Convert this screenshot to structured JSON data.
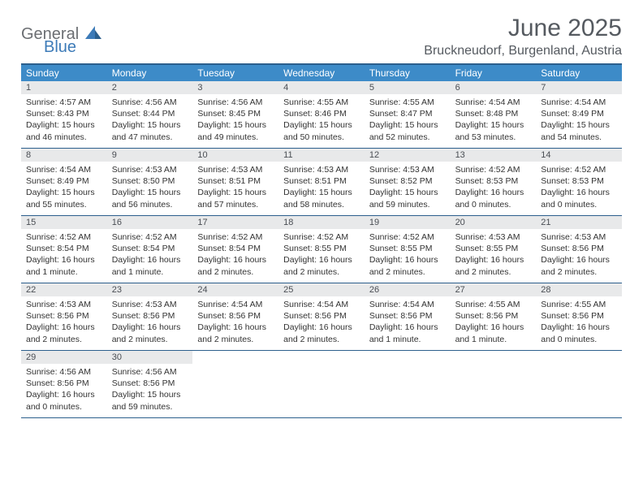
{
  "logo": {
    "text1": "General",
    "text2": "Blue"
  },
  "title": "June 2025",
  "location": "Bruckneudorf, Burgenland, Austria",
  "colors": {
    "header_bar": "#3d8bc8",
    "border": "#2c5f8d",
    "daynum_bg": "#e8e9ea",
    "text_gray": "#555a60",
    "logo_gray": "#6b6e72",
    "logo_blue": "#3d7bb8"
  },
  "dow": [
    "Sunday",
    "Monday",
    "Tuesday",
    "Wednesday",
    "Thursday",
    "Friday",
    "Saturday"
  ],
  "weeks": [
    [
      {
        "n": "1",
        "sr": "Sunrise: 4:57 AM",
        "ss": "Sunset: 8:43 PM",
        "d1": "Daylight: 15 hours",
        "d2": "and 46 minutes."
      },
      {
        "n": "2",
        "sr": "Sunrise: 4:56 AM",
        "ss": "Sunset: 8:44 PM",
        "d1": "Daylight: 15 hours",
        "d2": "and 47 minutes."
      },
      {
        "n": "3",
        "sr": "Sunrise: 4:56 AM",
        "ss": "Sunset: 8:45 PM",
        "d1": "Daylight: 15 hours",
        "d2": "and 49 minutes."
      },
      {
        "n": "4",
        "sr": "Sunrise: 4:55 AM",
        "ss": "Sunset: 8:46 PM",
        "d1": "Daylight: 15 hours",
        "d2": "and 50 minutes."
      },
      {
        "n": "5",
        "sr": "Sunrise: 4:55 AM",
        "ss": "Sunset: 8:47 PM",
        "d1": "Daylight: 15 hours",
        "d2": "and 52 minutes."
      },
      {
        "n": "6",
        "sr": "Sunrise: 4:54 AM",
        "ss": "Sunset: 8:48 PM",
        "d1": "Daylight: 15 hours",
        "d2": "and 53 minutes."
      },
      {
        "n": "7",
        "sr": "Sunrise: 4:54 AM",
        "ss": "Sunset: 8:49 PM",
        "d1": "Daylight: 15 hours",
        "d2": "and 54 minutes."
      }
    ],
    [
      {
        "n": "8",
        "sr": "Sunrise: 4:54 AM",
        "ss": "Sunset: 8:49 PM",
        "d1": "Daylight: 15 hours",
        "d2": "and 55 minutes."
      },
      {
        "n": "9",
        "sr": "Sunrise: 4:53 AM",
        "ss": "Sunset: 8:50 PM",
        "d1": "Daylight: 15 hours",
        "d2": "and 56 minutes."
      },
      {
        "n": "10",
        "sr": "Sunrise: 4:53 AM",
        "ss": "Sunset: 8:51 PM",
        "d1": "Daylight: 15 hours",
        "d2": "and 57 minutes."
      },
      {
        "n": "11",
        "sr": "Sunrise: 4:53 AM",
        "ss": "Sunset: 8:51 PM",
        "d1": "Daylight: 15 hours",
        "d2": "and 58 minutes."
      },
      {
        "n": "12",
        "sr": "Sunrise: 4:53 AM",
        "ss": "Sunset: 8:52 PM",
        "d1": "Daylight: 15 hours",
        "d2": "and 59 minutes."
      },
      {
        "n": "13",
        "sr": "Sunrise: 4:52 AM",
        "ss": "Sunset: 8:53 PM",
        "d1": "Daylight: 16 hours",
        "d2": "and 0 minutes."
      },
      {
        "n": "14",
        "sr": "Sunrise: 4:52 AM",
        "ss": "Sunset: 8:53 PM",
        "d1": "Daylight: 16 hours",
        "d2": "and 0 minutes."
      }
    ],
    [
      {
        "n": "15",
        "sr": "Sunrise: 4:52 AM",
        "ss": "Sunset: 8:54 PM",
        "d1": "Daylight: 16 hours",
        "d2": "and 1 minute."
      },
      {
        "n": "16",
        "sr": "Sunrise: 4:52 AM",
        "ss": "Sunset: 8:54 PM",
        "d1": "Daylight: 16 hours",
        "d2": "and 1 minute."
      },
      {
        "n": "17",
        "sr": "Sunrise: 4:52 AM",
        "ss": "Sunset: 8:54 PM",
        "d1": "Daylight: 16 hours",
        "d2": "and 2 minutes."
      },
      {
        "n": "18",
        "sr": "Sunrise: 4:52 AM",
        "ss": "Sunset: 8:55 PM",
        "d1": "Daylight: 16 hours",
        "d2": "and 2 minutes."
      },
      {
        "n": "19",
        "sr": "Sunrise: 4:52 AM",
        "ss": "Sunset: 8:55 PM",
        "d1": "Daylight: 16 hours",
        "d2": "and 2 minutes."
      },
      {
        "n": "20",
        "sr": "Sunrise: 4:53 AM",
        "ss": "Sunset: 8:55 PM",
        "d1": "Daylight: 16 hours",
        "d2": "and 2 minutes."
      },
      {
        "n": "21",
        "sr": "Sunrise: 4:53 AM",
        "ss": "Sunset: 8:56 PM",
        "d1": "Daylight: 16 hours",
        "d2": "and 2 minutes."
      }
    ],
    [
      {
        "n": "22",
        "sr": "Sunrise: 4:53 AM",
        "ss": "Sunset: 8:56 PM",
        "d1": "Daylight: 16 hours",
        "d2": "and 2 minutes."
      },
      {
        "n": "23",
        "sr": "Sunrise: 4:53 AM",
        "ss": "Sunset: 8:56 PM",
        "d1": "Daylight: 16 hours",
        "d2": "and 2 minutes."
      },
      {
        "n": "24",
        "sr": "Sunrise: 4:54 AM",
        "ss": "Sunset: 8:56 PM",
        "d1": "Daylight: 16 hours",
        "d2": "and 2 minutes."
      },
      {
        "n": "25",
        "sr": "Sunrise: 4:54 AM",
        "ss": "Sunset: 8:56 PM",
        "d1": "Daylight: 16 hours",
        "d2": "and 2 minutes."
      },
      {
        "n": "26",
        "sr": "Sunrise: 4:54 AM",
        "ss": "Sunset: 8:56 PM",
        "d1": "Daylight: 16 hours",
        "d2": "and 1 minute."
      },
      {
        "n": "27",
        "sr": "Sunrise: 4:55 AM",
        "ss": "Sunset: 8:56 PM",
        "d1": "Daylight: 16 hours",
        "d2": "and 1 minute."
      },
      {
        "n": "28",
        "sr": "Sunrise: 4:55 AM",
        "ss": "Sunset: 8:56 PM",
        "d1": "Daylight: 16 hours",
        "d2": "and 0 minutes."
      }
    ],
    [
      {
        "n": "29",
        "sr": "Sunrise: 4:56 AM",
        "ss": "Sunset: 8:56 PM",
        "d1": "Daylight: 16 hours",
        "d2": "and 0 minutes."
      },
      {
        "n": "30",
        "sr": "Sunrise: 4:56 AM",
        "ss": "Sunset: 8:56 PM",
        "d1": "Daylight: 15 hours",
        "d2": "and 59 minutes."
      },
      {
        "empty": true
      },
      {
        "empty": true
      },
      {
        "empty": true
      },
      {
        "empty": true
      },
      {
        "empty": true
      }
    ]
  ]
}
